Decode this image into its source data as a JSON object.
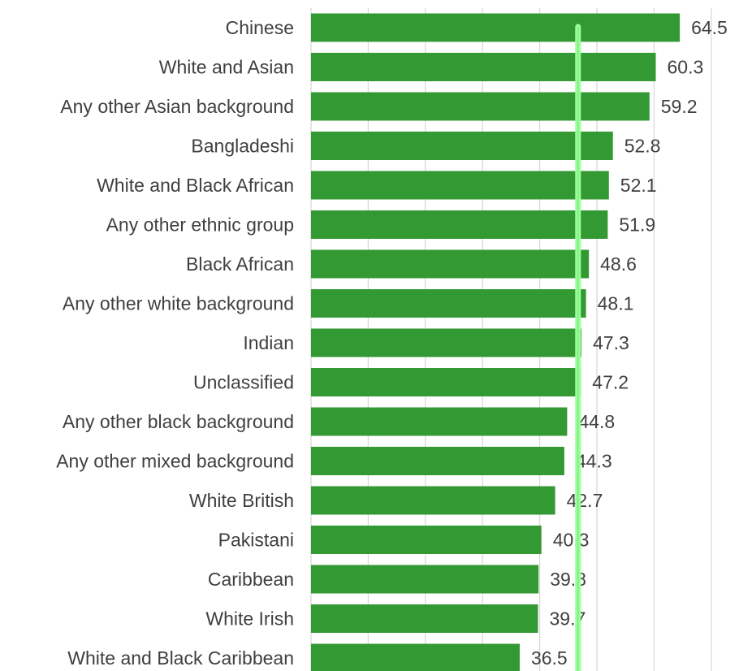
{
  "chart_data": {
    "type": "bar",
    "orientation": "horizontal",
    "categories": [
      "Chinese",
      "White and Asian",
      "Any other Asian background",
      "Bangladeshi",
      "White and Black African",
      "Any other ethnic group",
      "Black African",
      "Any other white background",
      "Indian",
      "Unclassified",
      "Any other black background",
      "Any other mixed background",
      "White British",
      "Pakistani",
      "Caribbean",
      "White Irish",
      "White and Black Caribbean"
    ],
    "values": [
      64.5,
      60.3,
      59.2,
      52.8,
      52.1,
      51.9,
      48.6,
      48.1,
      47.3,
      47.2,
      44.8,
      44.3,
      42.7,
      40.3,
      39.8,
      39.7,
      36.5
    ],
    "reference_line": {
      "value": 46.7
    },
    "xlim": [
      0,
      70
    ],
    "gridline_step": 10,
    "grid": true,
    "legend": "none",
    "colors": {
      "bar": "#339933",
      "reference_line": "#99ff99",
      "reference_line_core": "#66cc66",
      "gridline": "#d9d9d9",
      "text": "#404040"
    }
  }
}
